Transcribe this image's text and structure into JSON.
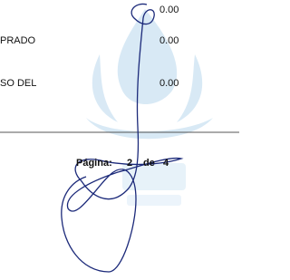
{
  "amounts": [
    {
      "value": "0.00"
    },
    {
      "label": "PRADO",
      "value": "0.00"
    },
    {
      "label": "SO DEL",
      "value": "0.00"
    }
  ],
  "footer": {
    "label": "Página:",
    "page": "2",
    "word": "de",
    "total": "4"
  }
}
